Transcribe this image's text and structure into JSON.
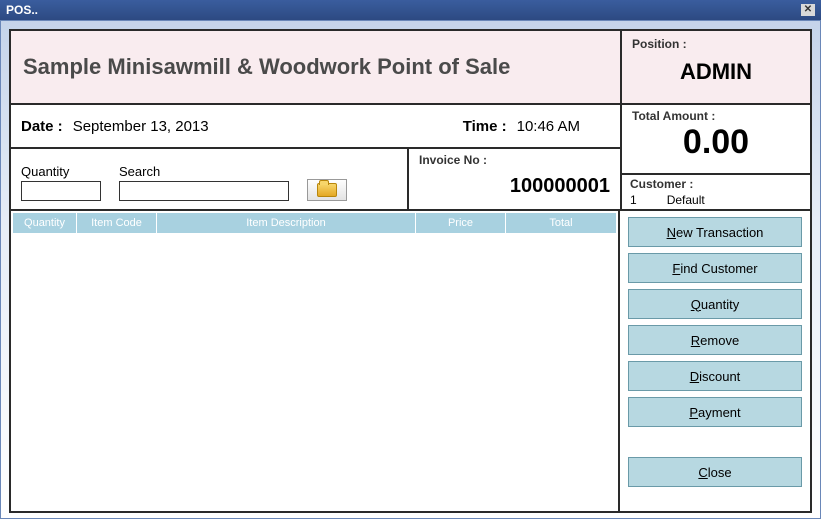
{
  "window": {
    "title": "POS.."
  },
  "header": {
    "app_title": "Sample Minisawmill & Woodwork Point of Sale",
    "position_label": "Position :",
    "position_value": "ADMIN"
  },
  "datetime": {
    "date_label": "Date :",
    "date_value": "September 13, 2013",
    "time_label": "Time :",
    "time_value": "10:46 AM"
  },
  "inputs": {
    "quantity_label": "Quantity",
    "quantity_value": "",
    "search_label": "Search",
    "search_value": ""
  },
  "invoice": {
    "label": "Invoice No :",
    "value": "100000001"
  },
  "totals": {
    "label": "Total Amount :",
    "value": "0.00"
  },
  "customer": {
    "label": "Customer :",
    "id": "1",
    "name": "Default"
  },
  "grid": {
    "columns": {
      "quantity": "Quantity",
      "item_code": "Item Code",
      "item_description": "Item Description",
      "price": "Price",
      "total": "Total"
    },
    "header_bg": "#a8d1e0",
    "header_fg": "#ffffff"
  },
  "buttons": {
    "new_transaction": "ew Transaction",
    "new_transaction_key": "N",
    "find_customer": "ind Customer",
    "find_customer_key": "F",
    "quantity": "uantity",
    "quantity_key": "Q",
    "remove": "emove",
    "remove_key": "R",
    "discount": "iscount",
    "discount_key": "D",
    "payment": "ayment",
    "payment_key": "P",
    "close": "lose",
    "close_key": "C"
  },
  "colors": {
    "accent_button": "#b7d8e1",
    "title_bg": "#f9ecef",
    "border": "#2a2a2a"
  }
}
